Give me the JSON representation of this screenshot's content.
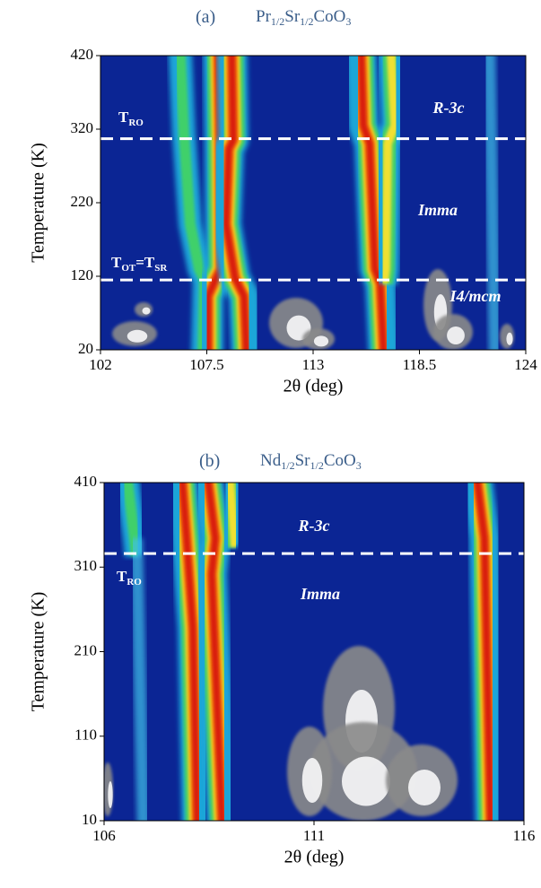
{
  "chart_data": [
    {
      "type": "heatmap",
      "title": "(a)",
      "formula": [
        {
          "text": "Pr"
        },
        {
          "sub": "1/2"
        },
        {
          "text": "Sr"
        },
        {
          "sub": "1/2"
        },
        {
          "text": "CoO"
        },
        {
          "sub": "3"
        }
      ],
      "xlabel": "2θ (deg)",
      "ylabel": "Temperature (K)",
      "xlim": [
        102,
        124
      ],
      "xticks": [
        102,
        107.5,
        113,
        118.5,
        124
      ],
      "ylim": [
        20,
        420
      ],
      "yticks": [
        20,
        120,
        220,
        320,
        420
      ],
      "transitions": [
        {
          "value": 307,
          "label": [
            {
              "text": "T"
            },
            {
              "sub": "RO"
            }
          ]
        },
        {
          "value": 115,
          "label": [
            {
              "text": "T"
            },
            {
              "sub": "OT"
            },
            {
              "text": "=T"
            },
            {
              "sub": "SR"
            }
          ]
        }
      ],
      "phases": [
        "R-3c",
        "Imma",
        "I4/mcm"
      ]
    },
    {
      "type": "heatmap",
      "title": "(b)",
      "formula": [
        {
          "text": "Nd"
        },
        {
          "sub": "1/2"
        },
        {
          "text": "Sr"
        },
        {
          "sub": "1/2"
        },
        {
          "text": "CoO"
        },
        {
          "sub": "3"
        }
      ],
      "xlabel": "2θ (deg)",
      "ylabel": "Temperature (K)",
      "xlim": [
        106,
        116
      ],
      "xticks": [
        106,
        111,
        116
      ],
      "ylim": [
        10,
        410
      ],
      "yticks": [
        10,
        110,
        210,
        310,
        410
      ],
      "transitions": [
        {
          "value": 326,
          "label": [
            {
              "text": "T"
            },
            {
              "sub": "RO"
            }
          ]
        }
      ],
      "phases": [
        "R-3c",
        "Imma"
      ]
    }
  ]
}
